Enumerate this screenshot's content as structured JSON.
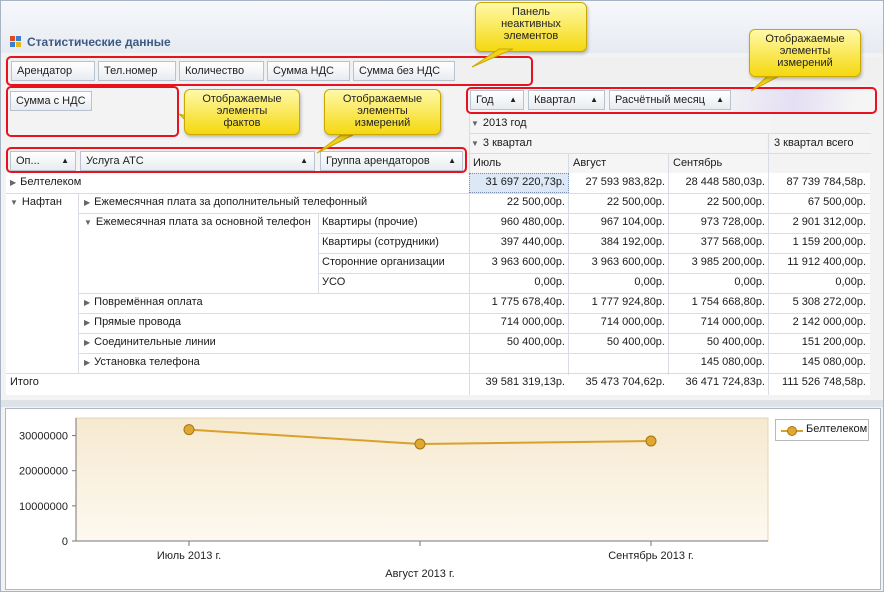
{
  "window": {
    "title": "Статистические данные"
  },
  "filter_panel": {
    "items": [
      "Арендатор",
      "Тел.номер",
      "Количество",
      "Сумма НДС",
      "Сумма без НДС"
    ]
  },
  "data_area": {
    "items": [
      "Сумма с НДС"
    ]
  },
  "column_area": {
    "items": [
      "Год",
      "Квартал",
      "Расчётный месяц"
    ]
  },
  "row_area": {
    "items": [
      "Оп...",
      "Услуга АТС",
      "Группа арендаторов"
    ]
  },
  "callouts": {
    "inactive": "Панель\nнеактивных\nэлементов",
    "facts": "Отображаемые\nэлементы\nфактов",
    "row_dims": "Отображаемые\nэлементы\nизмерений",
    "col_dims": "Отображаемые\nэлементы\nизмерений"
  },
  "column_headers": {
    "year": "2013 год",
    "quarter": "3 квартал",
    "quarter_total": "3 квартал всего",
    "months": [
      "Июль",
      "Август",
      "Сентябрь"
    ]
  },
  "rows": [
    {
      "level1": "Белтелеком",
      "level2": "",
      "level3": "",
      "values": [
        "31 697 220,73р.",
        "27 593 983,82р.",
        "28 448 580,03р.",
        "87 739 784,58р."
      ]
    },
    {
      "level1": "Нафтан",
      "level2": "Ежемесячная плата за дополнительный телефонный",
      "level3": "",
      "values": [
        "22 500,00р.",
        "22 500,00р.",
        "22 500,00р.",
        "67 500,00р."
      ]
    },
    {
      "level1": "",
      "level2": "Ежемесячная плата за основной телефон",
      "level3": "Квартиры (прочие)",
      "values": [
        "960 480,00р.",
        "967 104,00р.",
        "973 728,00р.",
        "2 901 312,00р."
      ]
    },
    {
      "level1": "",
      "level2": "",
      "level3": "Квартиры (сотрудники)",
      "values": [
        "397 440,00р.",
        "384 192,00р.",
        "377 568,00р.",
        "1 159 200,00р."
      ]
    },
    {
      "level1": "",
      "level2": "",
      "level3": "Сторонние организации",
      "values": [
        "3 963 600,00р.",
        "3 963 600,00р.",
        "3 985 200,00р.",
        "11 912 400,00р."
      ]
    },
    {
      "level1": "",
      "level2": "",
      "level3": "УСО",
      "values": [
        "0,00р.",
        "0,00р.",
        "0,00р.",
        "0,00р."
      ]
    },
    {
      "level1": "",
      "level2": "Повремённая оплата",
      "level3": "",
      "values": [
        "1 775 678,40р.",
        "1 777 924,80р.",
        "1 754 668,80р.",
        "5 308 272,00р."
      ]
    },
    {
      "level1": "",
      "level2": "Прямые провода",
      "level3": "",
      "values": [
        "714 000,00р.",
        "714 000,00р.",
        "714 000,00р.",
        "2 142 000,00р."
      ]
    },
    {
      "level1": "",
      "level2": "Соединительные линии",
      "level3": "",
      "values": [
        "50 400,00р.",
        "50 400,00р.",
        "50 400,00р.",
        "151 200,00р."
      ]
    },
    {
      "level1": "",
      "level2": "Установка телефона",
      "level3": "",
      "values": [
        "",
        "",
        "145 080,00р.",
        "145 080,00р."
      ]
    }
  ],
  "total_row": {
    "label": "Итого",
    "values": [
      "39 581 319,13р.",
      "35 473 704,62р.",
      "36 471 724,83р.",
      "111 526 748,58р."
    ]
  },
  "chart_data": {
    "type": "line",
    "categories": [
      "Июль 2013 г.",
      "Август 2013 г.",
      "Сентябрь 2013 г."
    ],
    "series": [
      {
        "name": "Белтелеком",
        "values": [
          31697220.73,
          27593983.82,
          28448580.03
        ],
        "color": "#d9a12a"
      }
    ],
    "y_ticks": [
      "0",
      "10000000",
      "20000000",
      "30000000"
    ],
    "ylim": [
      0,
      35000000
    ],
    "legend": "top-right",
    "grid": false
  },
  "colors": {
    "accent": "#d9a12a",
    "highlight": "#e8121f",
    "callout": "#f5d80f",
    "selected": "#dde8f7"
  }
}
